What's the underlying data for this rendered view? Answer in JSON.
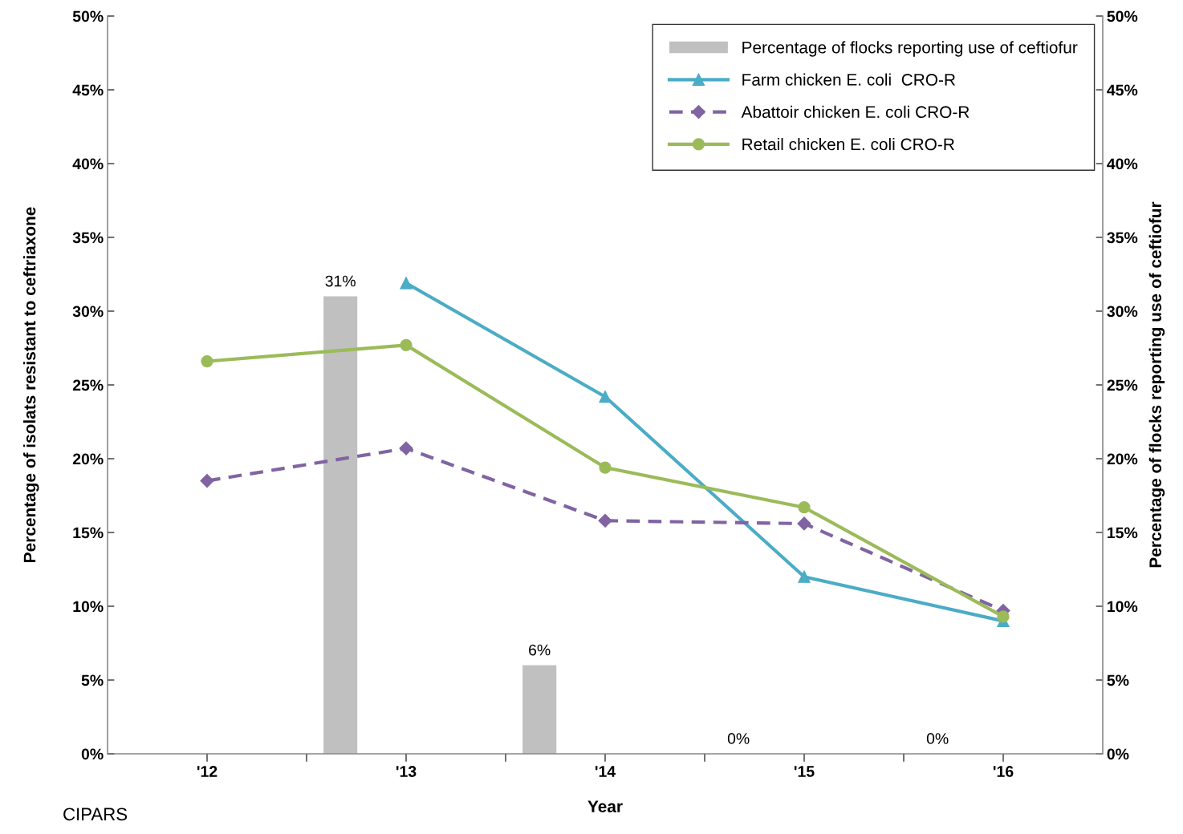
{
  "chart_data": {
    "type": "line",
    "xlabel": "Year",
    "ylabel": "Percentage of isolats resistant to ceftriaxone",
    "y2label": "Percentage of flocks reporting use of ceftiofur",
    "x": [
      2012,
      2013,
      2014,
      2015,
      2016
    ],
    "xlim": [
      2011.5,
      2016.5
    ],
    "xticks": [
      {
        "value": 2012,
        "label": "'12"
      },
      {
        "value": 2012.5,
        "label": null
      },
      {
        "value": 2013,
        "label": "'13"
      },
      {
        "value": 2013.5,
        "label": null
      },
      {
        "value": 2014,
        "label": "'14"
      },
      {
        "value": 2014.5,
        "label": null
      },
      {
        "value": 2015,
        "label": "'15"
      },
      {
        "value": 2015.5,
        "label": null
      },
      {
        "value": 2016,
        "label": "'16"
      }
    ],
    "ylim": [
      0,
      50
    ],
    "yticks": [
      {
        "value": 0,
        "label": "0%"
      },
      {
        "value": 5,
        "label": "5%"
      },
      {
        "value": 10,
        "label": "10%"
      },
      {
        "value": 15,
        "label": "15%"
      },
      {
        "value": 20,
        "label": "20%"
      },
      {
        "value": 25,
        "label": "25%"
      },
      {
        "value": 30,
        "label": "30%"
      },
      {
        "value": 35,
        "label": "35%"
      },
      {
        "value": 40,
        "label": "40%"
      },
      {
        "value": 45,
        "label": "45%"
      },
      {
        "value": 50,
        "label": "50%"
      }
    ],
    "y2lim": [
      0,
      50
    ],
    "y2ticks": [
      {
        "value": 0,
        "label": "0%"
      },
      {
        "value": 5,
        "label": "5%"
      },
      {
        "value": 10,
        "label": "10%"
      },
      {
        "value": 15,
        "label": "15%"
      },
      {
        "value": 20,
        "label": "20%"
      },
      {
        "value": 25,
        "label": "25%"
      },
      {
        "value": 30,
        "label": "30%"
      },
      {
        "value": 35,
        "label": "35%"
      },
      {
        "value": 40,
        "label": "40%"
      },
      {
        "value": 45,
        "label": "45%"
      },
      {
        "value": 50,
        "label": "50%"
      }
    ],
    "series": [
      {
        "name": "Percentage of flocks reporting use of ceftiofur",
        "type": "bar",
        "axis": "y2",
        "color": "#c0c0c0",
        "x": [
          2012.67,
          2013.67,
          2014.67,
          2015.67
        ],
        "values": [
          31,
          6,
          0,
          0
        ],
        "value_labels": [
          "31%",
          "6%",
          "0%",
          "0%"
        ]
      },
      {
        "name": "Farm chicken E. coli  CRO-R",
        "color": "#4bacc6",
        "marker": "triangle",
        "line_style": "solid",
        "values": [
          null,
          31.9,
          24.2,
          12.0,
          9.0
        ]
      },
      {
        "name": "Abattoir chicken E. coli CRO-R",
        "color": "#8064a2",
        "marker": "diamond",
        "line_style": "dashed",
        "values": [
          18.5,
          20.7,
          15.8,
          15.6,
          9.7
        ]
      },
      {
        "name": "Retail chicken E. coli CRO-R",
        "color": "#9bbb59",
        "marker": "circle",
        "line_style": "solid",
        "values": [
          26.6,
          27.7,
          19.4,
          16.7,
          9.3
        ]
      }
    ],
    "legend": "top right",
    "grid": false,
    "annotations": [
      "CIPARS"
    ]
  }
}
